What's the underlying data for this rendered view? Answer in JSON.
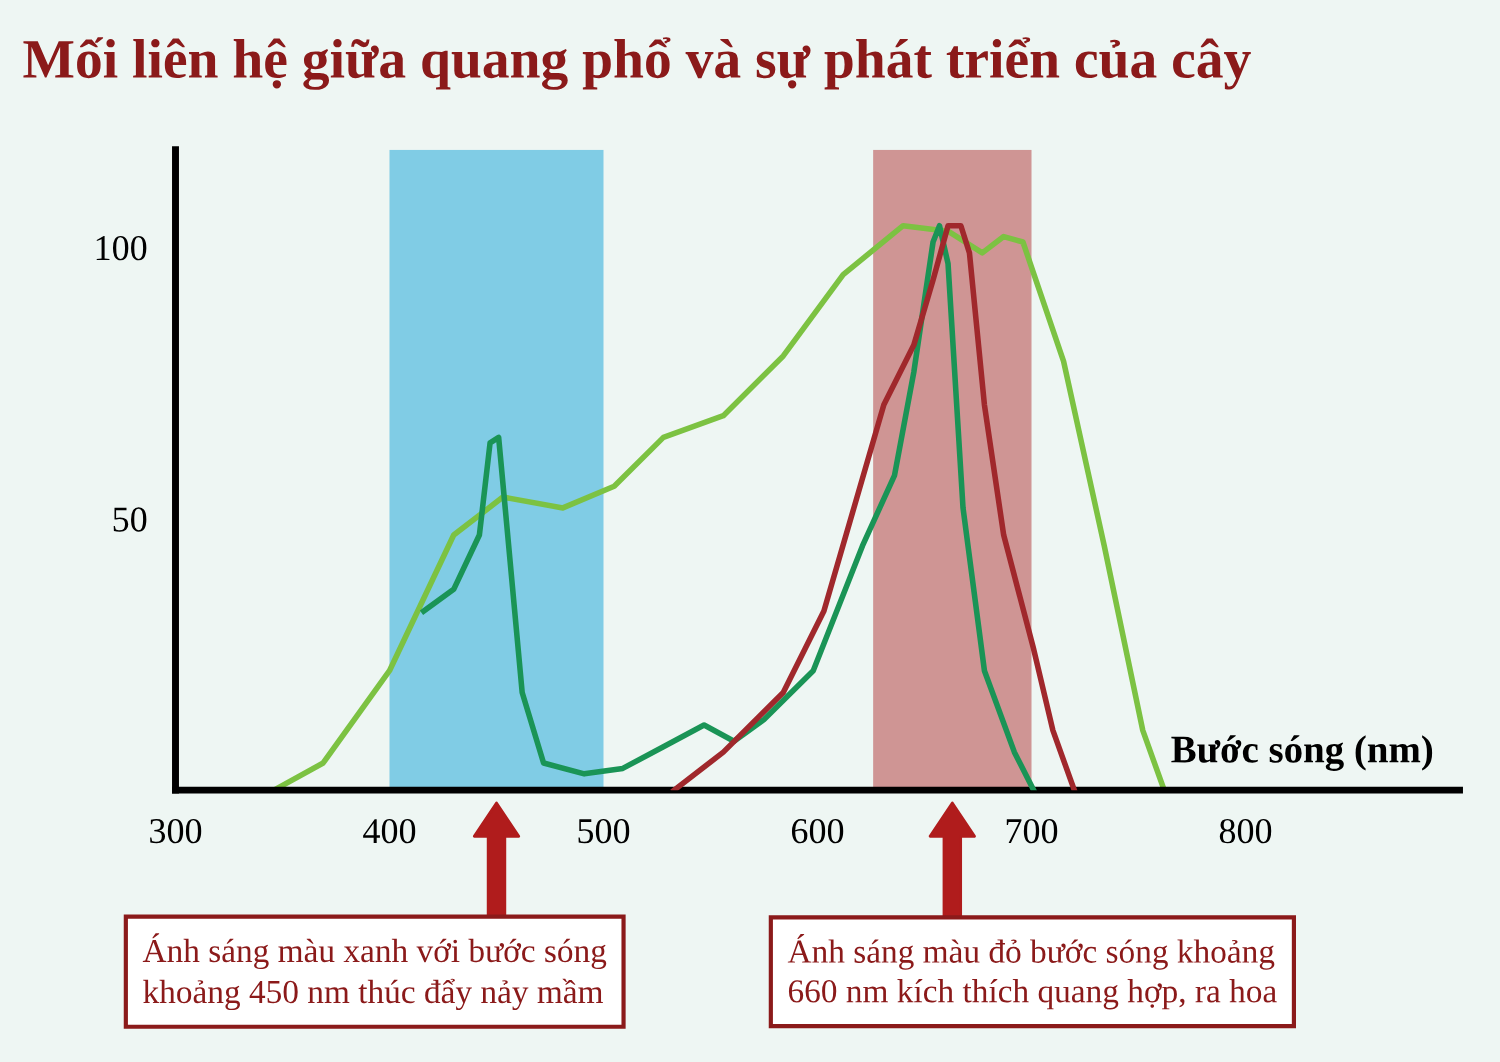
{
  "chart_data": {
    "type": "line",
    "title": "Mối liên hệ giữa quang phổ và sự phát triển của cây",
    "xlabel": "Bước sóng (nm)",
    "xlim": [
      300,
      900
    ],
    "xticks": [
      300,
      400,
      500,
      600,
      700,
      800
    ],
    "ylim": [
      0,
      118
    ],
    "yticks": [
      50,
      100
    ],
    "grid": false,
    "legend": false,
    "marker": "none",
    "line_style": "solid",
    "series": [
      {
        "color": "#7cc242",
        "x": [
          346,
          369,
          400,
          430,
          453,
          481,
          505,
          528,
          556,
          584,
          612,
          640,
          661,
          677,
          687,
          696,
          715,
          734,
          752,
          762
        ],
        "values": [
          0,
          5,
          22,
          47,
          54,
          52,
          56,
          65,
          69,
          80,
          95,
          104,
          103,
          99,
          102,
          101,
          79,
          45,
          11,
          0
        ]
      },
      {
        "color": "#1a9456",
        "x": [
          416,
          430,
          442,
          447,
          451,
          455,
          462,
          472,
          491,
          509,
          528,
          547,
          561,
          575,
          598,
          621,
          636,
          645,
          654,
          657,
          661,
          668,
          678,
          692,
          701
        ],
        "values": [
          33,
          37,
          47,
          64,
          65,
          48,
          18,
          5,
          3,
          4,
          8,
          12,
          9,
          13,
          22,
          45,
          58,
          77,
          101,
          104,
          97,
          52,
          22,
          7,
          0
        ]
      },
      {
        "color": "#a0282c",
        "x": [
          533,
          556,
          584,
          603,
          617,
          631,
          645,
          654,
          661,
          667,
          671,
          678,
          687,
          701,
          710,
          720
        ],
        "values": [
          0,
          7,
          18,
          33,
          52,
          71,
          82,
          94,
          104,
          104,
          99,
          71,
          47,
          26,
          11,
          0
        ]
      }
    ],
    "bands": [
      {
        "axis": "x",
        "from": 400,
        "to": 500,
        "color": "#5bbde0"
      },
      {
        "axis": "x",
        "from": 626,
        "to": 700,
        "color": "#c47474"
      }
    ],
    "annotations": [
      "Ánh sáng màu xanh với bước sóng\nkhoảng 450 nm thúc đẩy nảy mầm",
      "Ánh sáng màu đỏ bước sóng khoảng\n660 nm kích thích quang hợp, ra hoa"
    ]
  }
}
